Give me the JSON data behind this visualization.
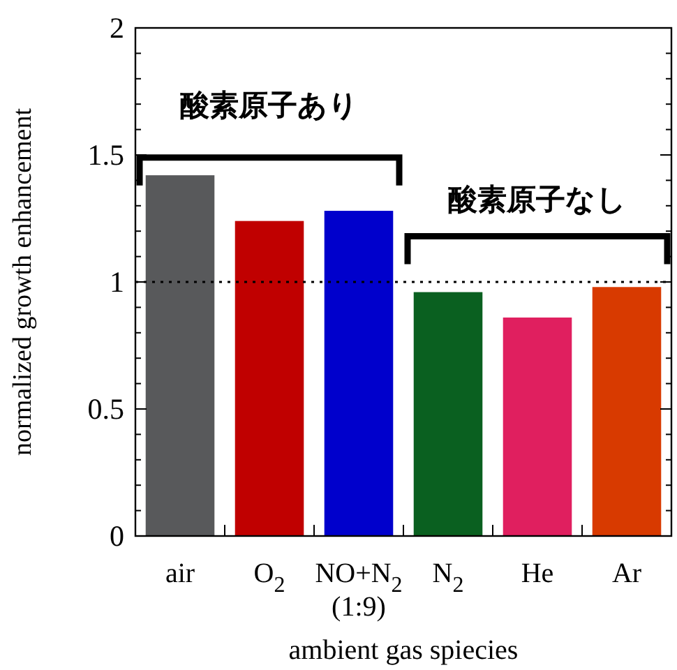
{
  "chart_data": {
    "type": "bar",
    "xlabel": "ambient gas spiecies",
    "ylabel": "normalized growth enhancement",
    "categories": [
      "air",
      "O$_{2}$",
      "NO+N$_{2}$\n(1:9)",
      "N$_{2}$",
      "He",
      "Ar"
    ],
    "values": [
      1.42,
      1.24,
      1.28,
      0.96,
      0.86,
      0.98
    ],
    "colors": [
      "#58595b",
      "#c00000",
      "#0000cc",
      "#0a6020",
      "#e01f5f",
      "#d83a00"
    ],
    "ylim": [
      0,
      2
    ],
    "yticks": [
      0,
      0.5,
      1,
      1.5,
      2
    ],
    "ref_lines": [
      {
        "axis": "y",
        "value": 1,
        "line_style": "dotted",
        "color": "#000000"
      }
    ],
    "annotations": [
      "酸素原子あり",
      "酸素原子なし"
    ],
    "grid": false
  }
}
